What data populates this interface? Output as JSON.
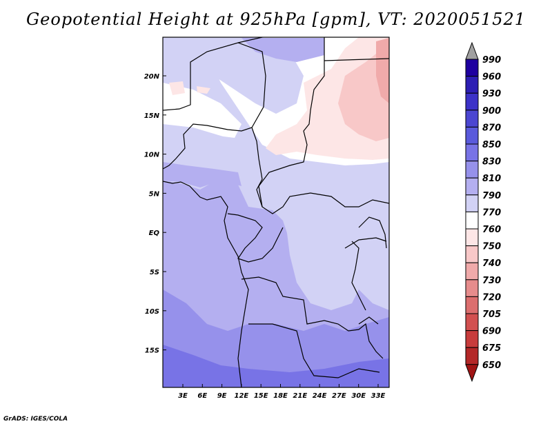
{
  "title": "Geopotential Height at 925hPa [gpm], VT: 2020051521",
  "credit": "GrADS: IGES/COLA",
  "map": {
    "lat_ticks": [
      "20N",
      "15N",
      "10N",
      "5N",
      "EQ",
      "5S",
      "10S",
      "15S"
    ],
    "lon_ticks": [
      "3E",
      "6E",
      "9E",
      "12E",
      "15E",
      "18E",
      "21E",
      "24E",
      "27E",
      "30E",
      "33E"
    ]
  },
  "colorbar": {
    "levels": [
      "990",
      "960",
      "930",
      "900",
      "870",
      "850",
      "830",
      "810",
      "790",
      "770",
      "760",
      "750",
      "740",
      "730",
      "720",
      "705",
      "690",
      "675",
      "650"
    ],
    "colors": [
      "#1e00a0",
      "#2d1eb4",
      "#3c32c8",
      "#4b46d2",
      "#5a5adc",
      "#7873e6",
      "#9691eb",
      "#b4aff0",
      "#d2d2f5",
      "#ffffff",
      "#fde6e6",
      "#f8c8c8",
      "#f0aaaa",
      "#e68c8c",
      "#dc6e6e",
      "#d25050",
      "#c83c3c",
      "#b42828",
      "#a01414"
    ],
    "top_arrow_color": "#a0a0a0",
    "bottom_arrow_color": "#a01414"
  }
}
